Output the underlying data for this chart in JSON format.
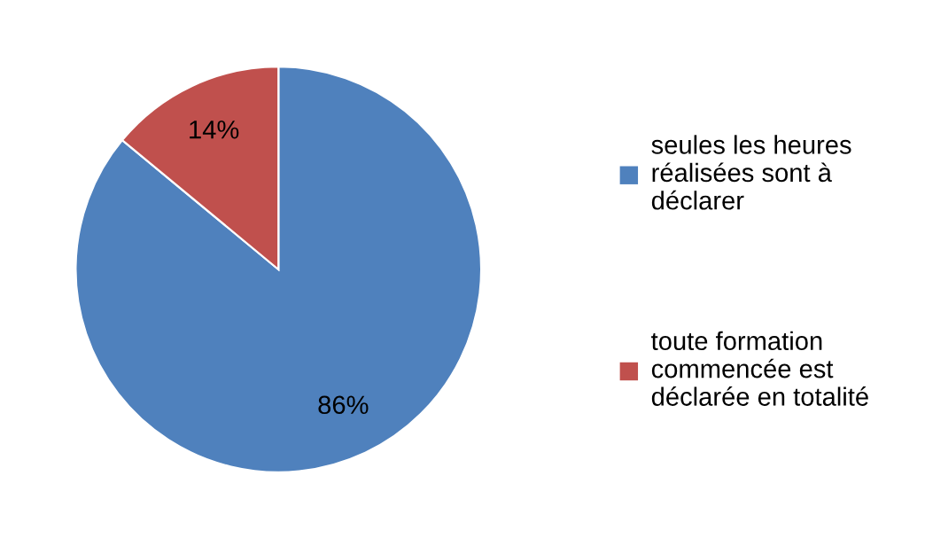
{
  "chart_data": {
    "type": "pie",
    "categories": [
      "seules les heures\nréalisées sont à\ndéclarer",
      "toute formation\ncommencée est\ndéclarée en totalité"
    ],
    "values": [
      86,
      14
    ],
    "colors": [
      "#4f81bd",
      "#c0504d"
    ],
    "value_labels": [
      "86%",
      "14%"
    ],
    "legend": "right"
  }
}
